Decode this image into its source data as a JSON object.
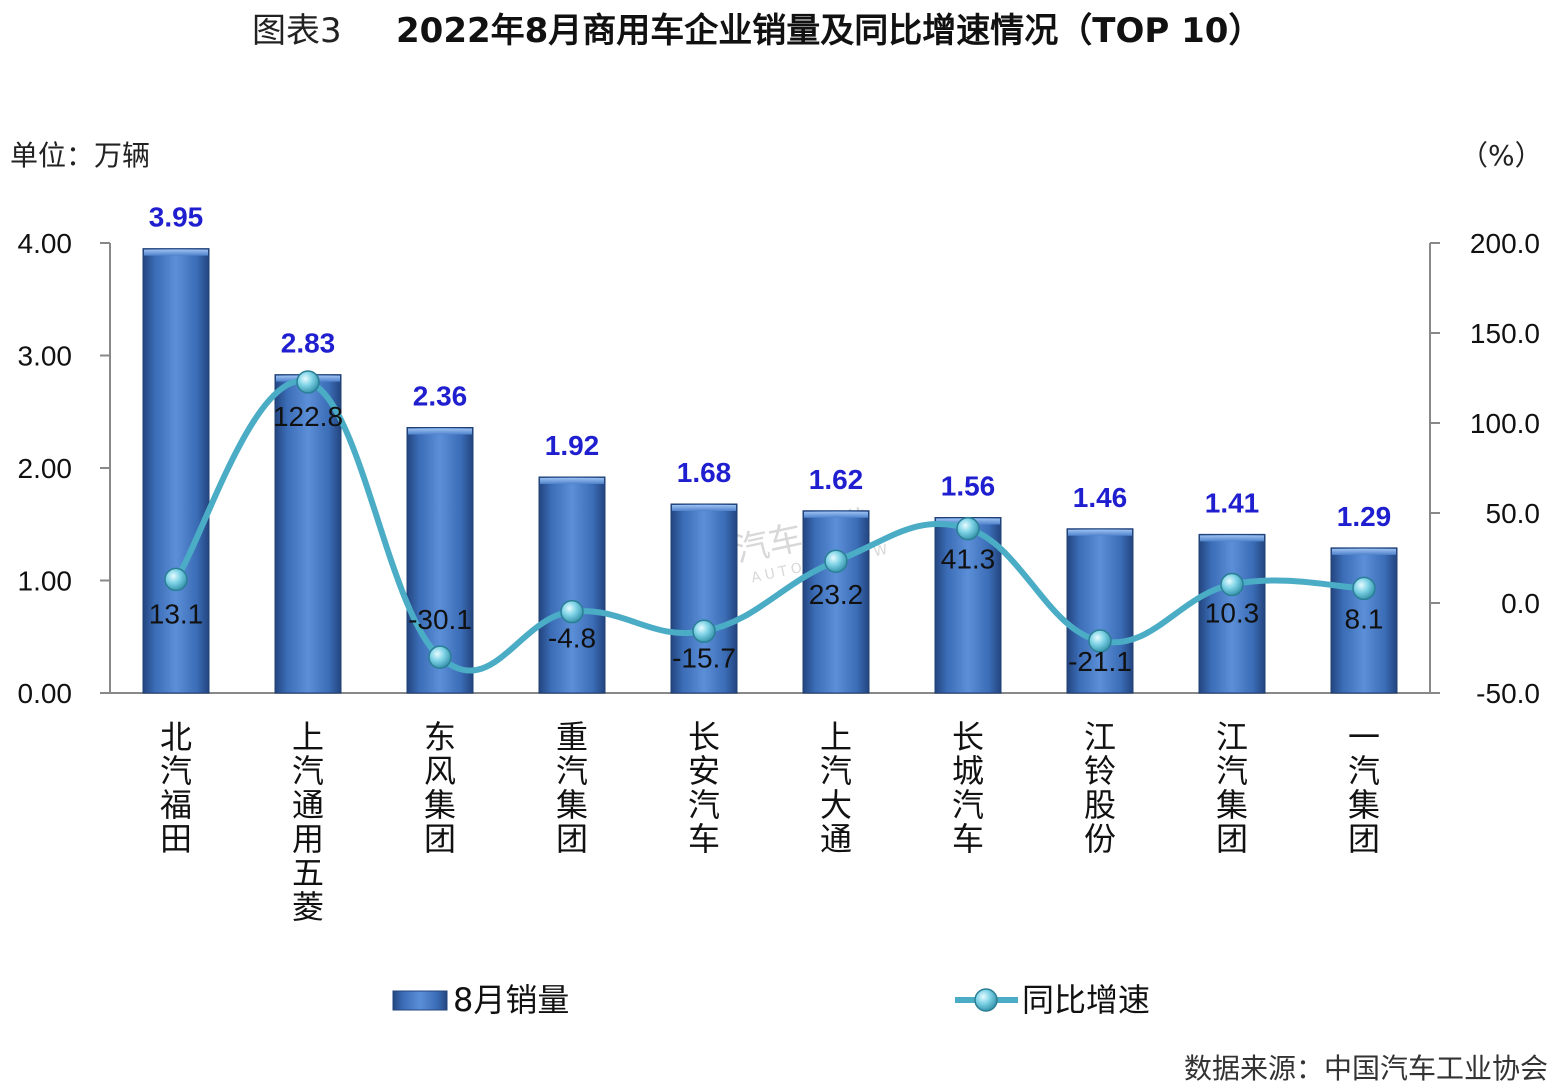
{
  "title_prefix": "图表3",
  "title_main": "2022年8月商用车企业销量及同比增速情况（TOP 10）",
  "unit_left": "单位：万辆",
  "unit_right": "（%）",
  "source": "数据来源：中国汽车工业协会",
  "watermark": {
    "cn": "汽车纵横",
    "en": "AUTO REVIEW"
  },
  "colors": {
    "bar": "#3d73c0",
    "bar_dark": "#274f8f",
    "bar_light": "#79a3df",
    "line": "#4bacc6",
    "bar_label": "#1f1fcf"
  },
  "chart_data": {
    "type": "bar+line",
    "categories": [
      "北汽福田",
      "上汽通用五菱",
      "东风集团",
      "重汽集团",
      "长安汽车",
      "上汽大通",
      "长城汽车",
      "江铃股份",
      "江汽集团",
      "一汽集团"
    ],
    "series": [
      {
        "name": "8月销量",
        "type": "bar",
        "axis": "left",
        "values": [
          3.95,
          2.83,
          2.36,
          1.92,
          1.68,
          1.62,
          1.56,
          1.46,
          1.41,
          1.29
        ],
        "labels": [
          "3.95",
          "2.83",
          "2.36",
          "1.92",
          "1.68",
          "1.62",
          "1.56",
          "1.46",
          "1.41",
          "1.29"
        ]
      },
      {
        "name": "同比增速",
        "type": "line",
        "axis": "right",
        "values": [
          13.1,
          122.8,
          -30.1,
          -4.8,
          -15.7,
          23.2,
          41.3,
          -21.1,
          10.3,
          8.1
        ],
        "labels": [
          "13.1",
          "122.8",
          "-30.1",
          "-4.8",
          "-15.7",
          "23.2",
          "41.3",
          "-21.1",
          "10.3",
          "8.1"
        ]
      }
    ],
    "y_left": {
      "min": 0,
      "max": 4,
      "ticks": [
        0,
        1,
        2,
        3,
        4
      ],
      "tick_labels": [
        "0.00",
        "1.00",
        "2.00",
        "3.00",
        "4.00"
      ]
    },
    "y_right": {
      "min": -50,
      "max": 200,
      "ticks": [
        -50,
        0,
        50,
        100,
        150,
        200
      ],
      "tick_labels": [
        "-50.0",
        "0.0",
        "50.0",
        "100.0",
        "150.0",
        "200.0"
      ]
    },
    "legend": {
      "position": "bottom",
      "items": [
        "8月销量",
        "同比增速"
      ]
    },
    "grid": false
  }
}
